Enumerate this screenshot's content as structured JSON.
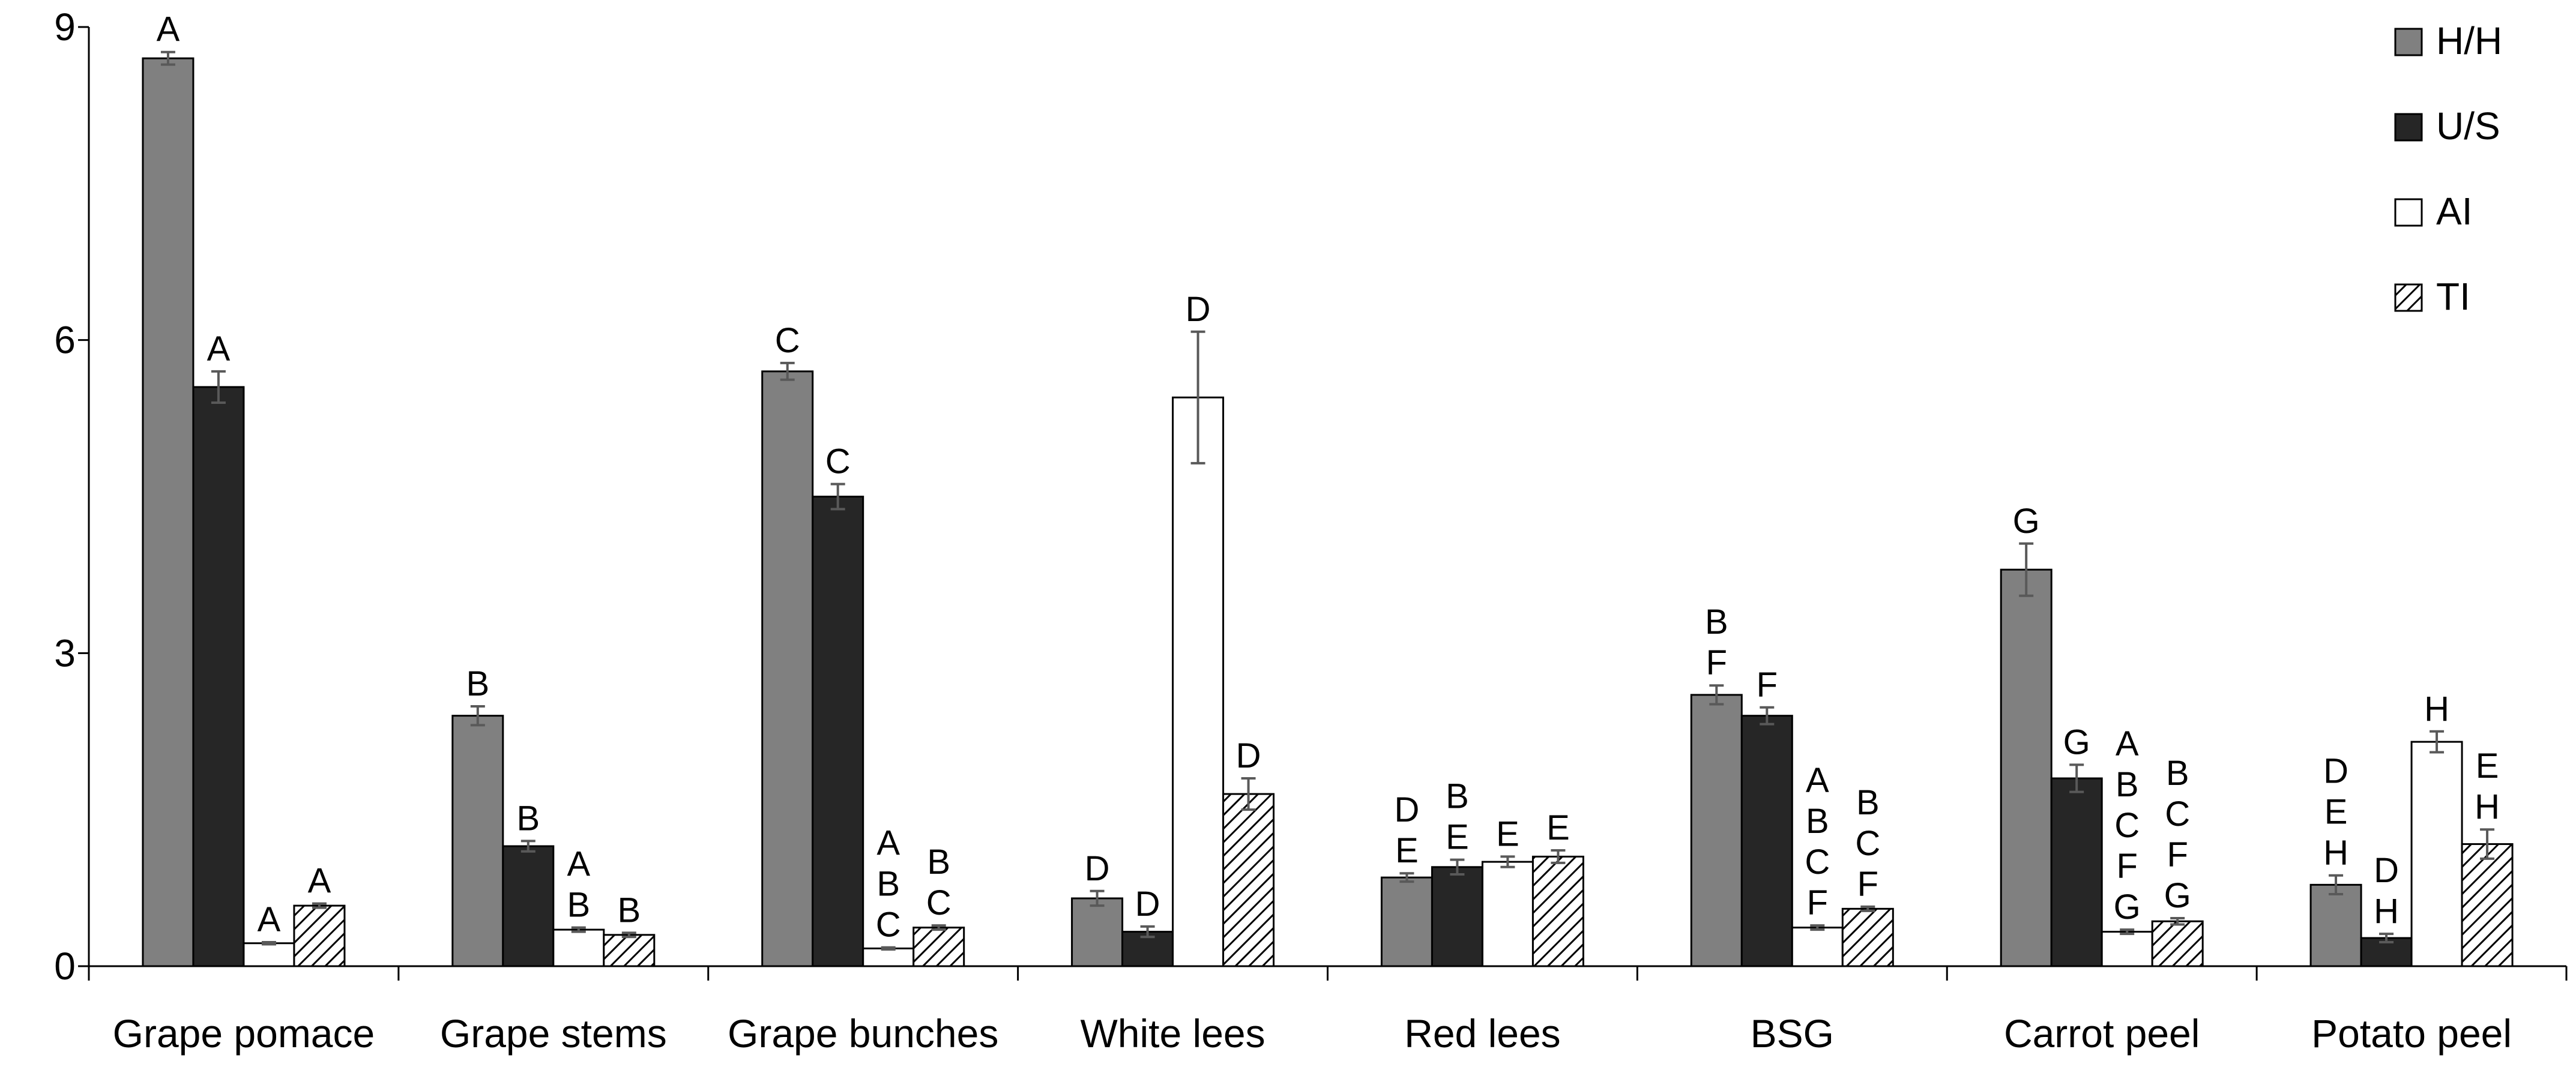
{
  "chart_data": {
    "type": "bar",
    "title": "",
    "xlabel": "",
    "ylabel": "",
    "ylim": [
      0,
      9
    ],
    "yticks": [
      0,
      3,
      6,
      9
    ],
    "grid": false,
    "legend_position": "top-right",
    "categories": [
      "Grape pomace",
      "Grape stems",
      "Grape bunches",
      "White lees",
      "Red lees",
      "BSG",
      "Carrot peel",
      "Potato peel"
    ],
    "series": [
      {
        "name": "H/H",
        "fill": "solid",
        "color": "#808080",
        "values": [
          8.7,
          2.4,
          5.7,
          0.65,
          0.85,
          2.6,
          3.8,
          0.78
        ],
        "errors": [
          0.06,
          0.09,
          0.08,
          0.07,
          0.04,
          0.09,
          0.25,
          0.09
        ],
        "labels": [
          "A",
          "B",
          "C",
          "D",
          "D\nE",
          "B\nF",
          "G",
          "D\nE\nH"
        ]
      },
      {
        "name": "U/S",
        "fill": "solid",
        "color": "#262626",
        "values": [
          5.55,
          1.15,
          4.5,
          0.33,
          0.95,
          2.4,
          1.8,
          0.27
        ],
        "errors": [
          0.15,
          0.05,
          0.12,
          0.05,
          0.07,
          0.08,
          0.13,
          0.04
        ],
        "labels": [
          "A",
          "B",
          "C",
          "D",
          "B\nE",
          "F",
          "G",
          "D\nH"
        ]
      },
      {
        "name": "AI",
        "fill": "solid",
        "color": "#ffffff",
        "values": [
          0.22,
          0.35,
          0.17,
          5.45,
          1.0,
          0.37,
          0.33,
          2.15
        ],
        "errors": [
          0.01,
          0.02,
          0.01,
          0.63,
          0.05,
          0.02,
          0.02,
          0.1
        ],
        "labels": [
          "A",
          "A\nB",
          "A\nB\nC",
          "D",
          "E",
          "A\nB\nC\nF",
          "A\nB\nC\nF\nG",
          "H"
        ]
      },
      {
        "name": "TI",
        "fill": "hatch",
        "color": "#ffffff",
        "values": [
          0.58,
          0.3,
          0.37,
          1.65,
          1.05,
          0.55,
          0.43,
          1.17
        ],
        "errors": [
          0.02,
          0.02,
          0.02,
          0.15,
          0.06,
          0.02,
          0.03,
          0.14
        ],
        "labels": [
          "A",
          "B",
          "B\nC",
          "D",
          "E",
          "B\nC\nF",
          "B\nC\nF\nG",
          "E\nH"
        ]
      }
    ]
  }
}
